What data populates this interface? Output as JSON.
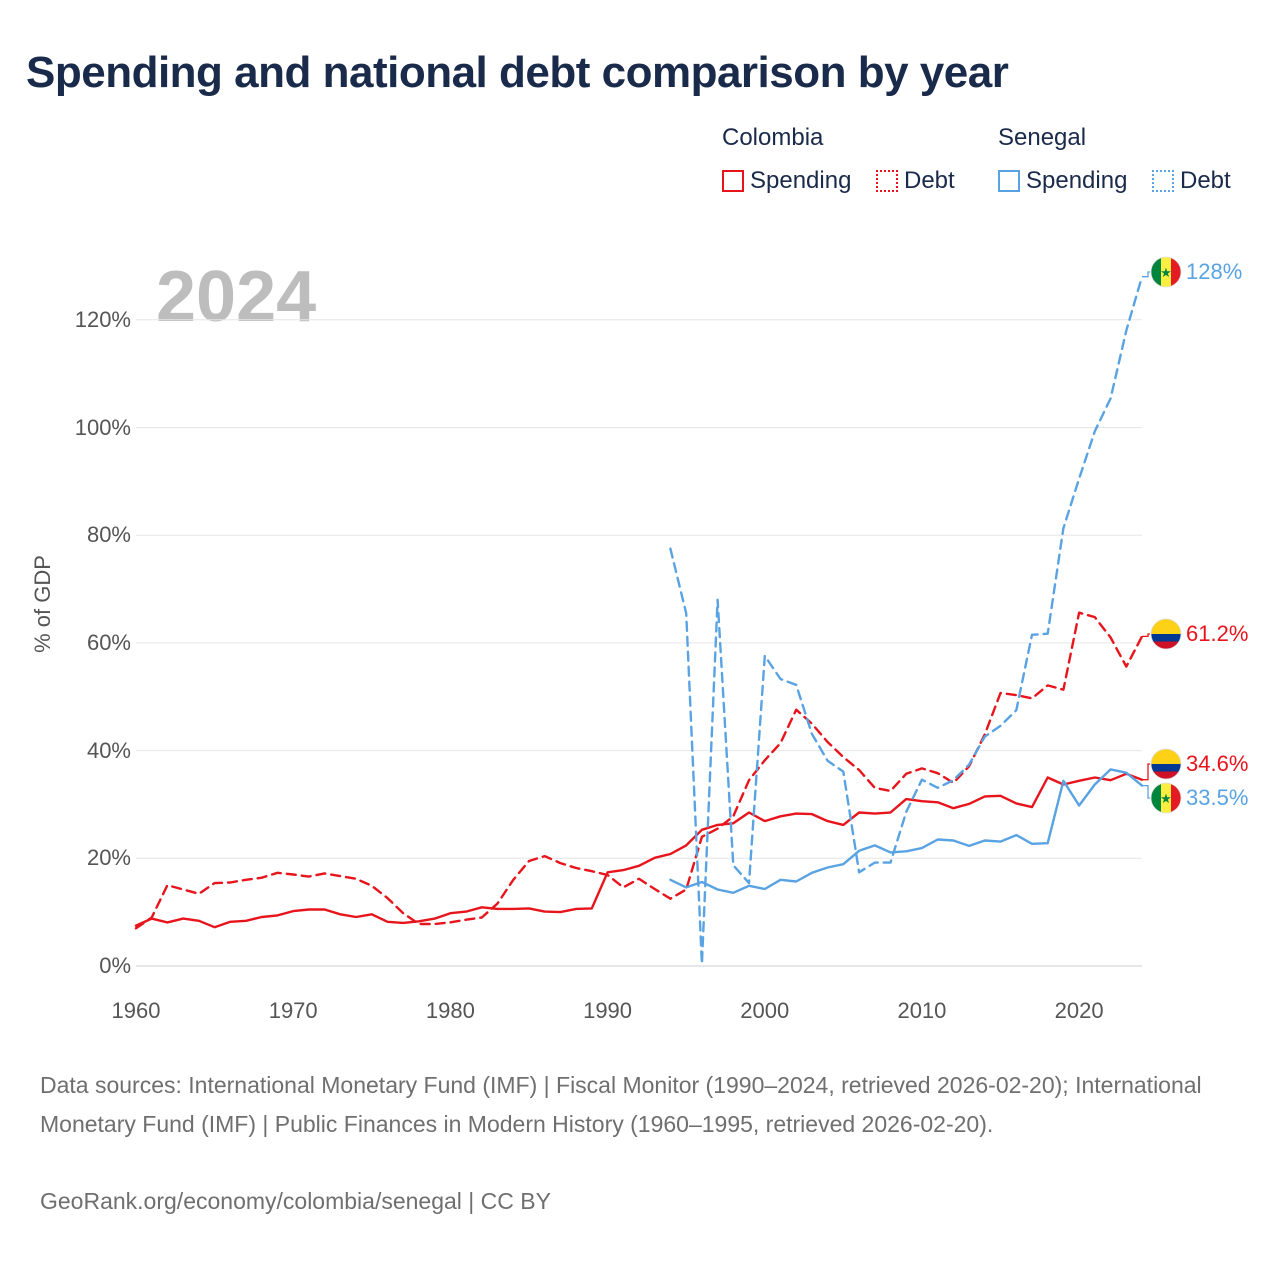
{
  "title": "Spending and national debt comparison by year",
  "year_label": "2024",
  "legend": {
    "colombia": {
      "title": "Colombia",
      "spending": "Spending",
      "debt": "Debt",
      "color": "#e8141c"
    },
    "senegal": {
      "title": "Senegal",
      "spending": "Spending",
      "debt": "Debt",
      "color": "#5aa3e3"
    }
  },
  "chart_data": {
    "type": "line",
    "title": "Spending and national debt comparison by year",
    "xlabel": "",
    "ylabel": "% of GDP",
    "xlim": [
      1960,
      2024
    ],
    "ylim": [
      0,
      130
    ],
    "xticks": [
      1960,
      1970,
      1980,
      1990,
      2000,
      2010,
      2020
    ],
    "yticks": [
      0,
      20,
      40,
      60,
      80,
      100,
      120
    ],
    "ytick_labels": [
      "0%",
      "20%",
      "40%",
      "60%",
      "80%",
      "100%",
      "120%"
    ],
    "series": [
      {
        "name": "Colombia Spending",
        "country": "Colombia",
        "kind": "Spending",
        "color": "#e8141c",
        "dashed": false,
        "start_year": 1960,
        "values": [
          7.5,
          8.8,
          8.1,
          8.8,
          8.4,
          7.2,
          8.2,
          8.4,
          9.1,
          9.4,
          10.2,
          10.5,
          10.5,
          9.6,
          9.1,
          9.6,
          8.2,
          8.0,
          8.3,
          8.8,
          9.8,
          10.1,
          10.9,
          10.6,
          10.6,
          10.7,
          10.1,
          10.0,
          10.6,
          10.7,
          17.4,
          17.8,
          18.6,
          20.1,
          20.8,
          22.4,
          25.3,
          26.2,
          26.5,
          28.5,
          26.9,
          27.8,
          28.3,
          28.2,
          26.9,
          26.2,
          28.5,
          28.3,
          28.5,
          31.0,
          30.6,
          30.4,
          29.3,
          30.1,
          31.5,
          31.6,
          30.2,
          29.5,
          35.0,
          33.7,
          34.4,
          35.0,
          34.5,
          35.7,
          34.6
        ]
      },
      {
        "name": "Colombia Debt",
        "country": "Colombia",
        "kind": "Debt",
        "color": "#e8141c",
        "dashed": true,
        "start_year": 1960,
        "values": [
          7.0,
          9.0,
          15.0,
          14.2,
          13.4,
          15.4,
          15.5,
          16.0,
          16.4,
          17.3,
          17.0,
          16.6,
          17.2,
          16.7,
          16.2,
          14.9,
          12.6,
          9.8,
          7.8,
          7.8,
          8.1,
          8.6,
          9.0,
          11.6,
          16.0,
          19.5,
          20.4,
          19.1,
          18.2,
          17.6,
          16.9,
          14.6,
          16.2,
          14.3,
          12.5,
          14.2,
          24.0,
          25.5,
          27.8,
          34.5,
          38.2,
          41.4,
          47.6,
          45.0,
          41.6,
          38.8,
          36.4,
          33.1,
          32.5,
          35.7,
          36.7,
          35.8,
          34.0,
          37.1,
          43.0,
          50.7,
          50.3,
          49.7,
          52.1,
          51.3,
          65.6,
          64.8,
          61.0,
          55.6,
          61.2
        ]
      },
      {
        "name": "Senegal Spending",
        "country": "Senegal",
        "kind": "Spending",
        "color": "#5aa3e3",
        "dashed": false,
        "start_year": 1994,
        "values": [
          16.0,
          14.6,
          15.6,
          14.2,
          13.6,
          14.9,
          14.3,
          16.0,
          15.7,
          17.3,
          18.3,
          18.9,
          21.4,
          22.4,
          21.1,
          21.3,
          21.9,
          23.5,
          23.3,
          22.3,
          23.3,
          23.1,
          24.3,
          22.7,
          22.8,
          34.4,
          29.8,
          33.7,
          36.5,
          35.9,
          33.5
        ]
      },
      {
        "name": "Senegal Debt",
        "country": "Senegal",
        "kind": "Debt",
        "color": "#5aa3e3",
        "dashed": true,
        "start_year": 1994,
        "values": [
          77.5,
          65.5,
          0.4,
          68.0,
          18.7,
          15.4,
          57.6,
          53.3,
          52.2,
          43.1,
          38.1,
          36.1,
          17.4,
          19.2,
          19.2,
          28.6,
          34.6,
          33.1,
          34.5,
          37.4,
          42.6,
          44.6,
          47.5,
          61.5,
          61.7,
          81.3,
          90.5,
          99.3,
          105.4,
          118.0,
          128.0
        ]
      }
    ],
    "end_labels": [
      {
        "country": "Senegal",
        "kind": "Debt",
        "value": 128.0,
        "label": "128%",
        "color": "#5aa3e3"
      },
      {
        "country": "Colombia",
        "kind": "Debt",
        "value": 61.2,
        "label": "61.2%",
        "color": "#e8141c"
      },
      {
        "country": "Colombia",
        "kind": "Spending",
        "value": 34.6,
        "label": "34.6%",
        "color": "#e8141c"
      },
      {
        "country": "Senegal",
        "kind": "Spending",
        "value": 33.5,
        "label": "33.5%",
        "color": "#5aa3e3"
      }
    ],
    "grid": true
  },
  "flags": {
    "senegal": {
      "green": "#00853f",
      "yellow": "#fdef42",
      "red": "#e31b23",
      "star": "★",
      "star_color": "#00853f"
    },
    "colombia": {
      "yellow": "#fcd116",
      "blue": "#003893",
      "red": "#ce1126"
    }
  },
  "footer": {
    "sources": "Data sources: International Monetary Fund (IMF) | Fiscal Monitor (1990–2024, retrieved 2026-02-20); International Monetary Fund (IMF) | Public Finances in Modern History (1960–1995, retrieved 2026-02-20).",
    "credit": "GeoRank.org/economy/colombia/senegal | CC BY"
  }
}
